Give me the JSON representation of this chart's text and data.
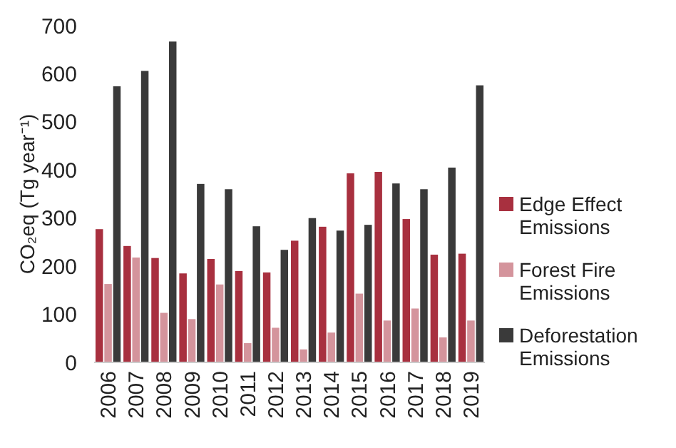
{
  "chart_data": {
    "type": "bar",
    "ylabel": "CO₂eq (Tg year⁻¹)",
    "categories": [
      "2006",
      "2007",
      "2008",
      "2009",
      "2010",
      "2011",
      "2012",
      "2013",
      "2014",
      "2015",
      "2016",
      "2017",
      "2018",
      "2019"
    ],
    "series": [
      {
        "name": "Edge Effect Emissions",
        "color": "#a8303f",
        "values": [
          277,
          242,
          217,
          185,
          215,
          190,
          187,
          253,
          282,
          393,
          396,
          298,
          224,
          226
        ]
      },
      {
        "name": "Forest Fire Emissions",
        "color": "#d4949c",
        "values": [
          163,
          218,
          103,
          90,
          162,
          40,
          72,
          27,
          62,
          143,
          87,
          112,
          52,
          87
        ]
      },
      {
        "name": "Deforestation Emissions",
        "color": "#3a3a3a",
        "values": [
          574,
          606,
          667,
          371,
          360,
          283,
          234,
          300,
          274,
          286,
          372,
          360,
          405,
          576
        ]
      }
    ],
    "ylim": [
      0,
      700
    ],
    "yticks": [
      0,
      100,
      200,
      300,
      400,
      500,
      600,
      700
    ],
    "grid": false,
    "legend": "right"
  }
}
